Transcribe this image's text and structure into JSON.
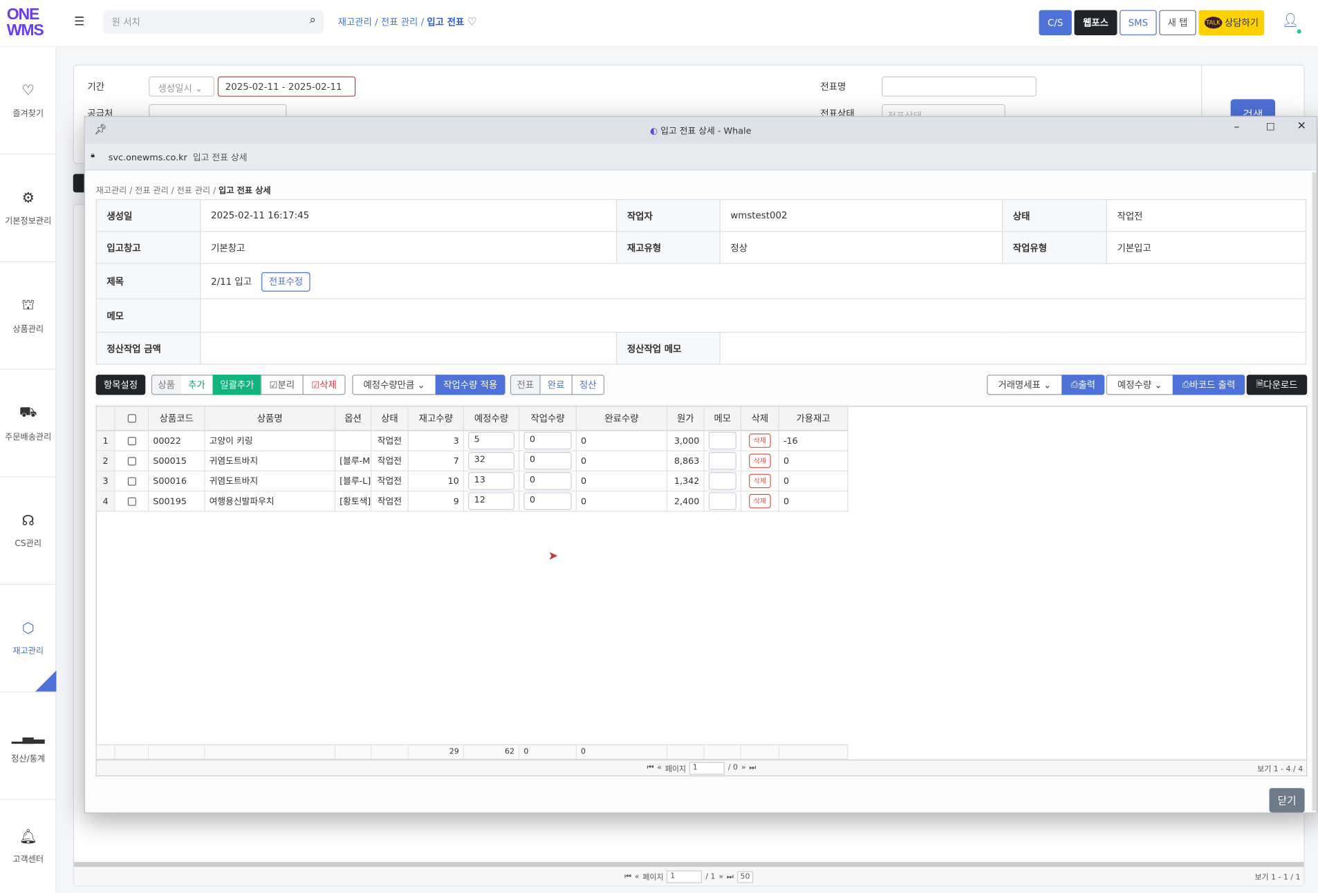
{
  "app": {
    "logo": "ONE WMS",
    "search_placeholder": "원 서치",
    "breadcrumb": [
      "재고관리",
      "전표 관리",
      "입고 전표"
    ],
    "buttons": {
      "cs": "C/S",
      "webpos": "웹포스",
      "sms": "SMS",
      "newtab": "새 탭",
      "talk": "상담하기"
    },
    "colors": {
      "accent": "#4f72d9",
      "dark": "#212529",
      "talk": "#fdd000",
      "brand": "#6a3df0"
    }
  },
  "sidebar": [
    {
      "label": "즐겨찾기",
      "icon": "heart"
    },
    {
      "label": "기본정보관리",
      "icon": "gear"
    },
    {
      "label": "상품관리",
      "icon": "lock-bag"
    },
    {
      "label": "주문배송관리",
      "icon": "truck"
    },
    {
      "label": "CS관리",
      "icon": "headset"
    },
    {
      "label": "재고관리",
      "icon": "cube",
      "active": true
    },
    {
      "label": "정산/통계",
      "icon": "bar-chart"
    },
    {
      "label": "고객센터",
      "icon": "bell"
    }
  ],
  "search_panel": {
    "period_label": "기간",
    "period_type": "생성일시",
    "period_value": "2025-02-11 - 2025-02-11",
    "supplier_label": "공급처",
    "slip_name_label": "전표명",
    "slip_status_label": "전표상태",
    "slip_status_placeholder": "전표상태",
    "search_button": "검색"
  },
  "bg_pager": {
    "page_label": "페이지",
    "page": "1",
    "total": "/ 1",
    "page_size": "50",
    "view": "보기 1 - 1 / 1"
  },
  "modal": {
    "title": "입고 전표 상세 - Whale",
    "url_host": "svc.onewms.co.kr",
    "url_title": "입고 전표 상세",
    "breadcrumb": [
      "재고관리",
      "전표 관리",
      "전표 관리",
      "입고 전표 상세"
    ],
    "info": {
      "created_label": "생성일",
      "created": "2025-02-11 16:17:45",
      "worker_label": "작업자",
      "worker": "wmstest002",
      "status_label": "상태",
      "status": "작업전",
      "warehouse_label": "입고창고",
      "warehouse": "기본창고",
      "stock_type_label": "재고유형",
      "stock_type": "정상",
      "work_type_label": "작업유형",
      "work_type": "기본입고",
      "title_label": "제목",
      "title": "2/11 입고",
      "edit_button": "전표수정",
      "memo_label": "메모",
      "settle_amount_label": "정산작업 금액",
      "settle_memo_label": "정산작업 메모"
    },
    "toolbar": {
      "settings": "항목설정",
      "product": "상품",
      "add": "추가",
      "bulk_add": "일괄추가",
      "split": "분리",
      "delete": "삭제",
      "qty_select": "예정수량만큼",
      "apply_qty": "작업수량 적용",
      "slip": "전표",
      "done": "완료",
      "settle": "정산",
      "statement_select": "거래명세표",
      "print": "출력",
      "barcode_select": "예정수량",
      "barcode_print": "바코드 출력",
      "download": "다운로드"
    },
    "columns": [
      "",
      "",
      "상품코드",
      "상품명",
      "옵션",
      "상태",
      "재고수량",
      "예정수량",
      "작업수량",
      "완료수량",
      "원가",
      "메모",
      "삭제",
      "가용재고"
    ],
    "rows": [
      {
        "no": "1",
        "code": "00022",
        "name": "고양이 키링",
        "option": "",
        "status": "작업전",
        "stock": "3",
        "planned": "5",
        "work": "0",
        "done": "0",
        "cost": "3,000",
        "avail": "-16"
      },
      {
        "no": "2",
        "code": "S00015",
        "name": "귀염도트바지",
        "option": "[블루-M]",
        "status": "작업전",
        "stock": "7",
        "planned": "32",
        "work": "0",
        "done": "0",
        "cost": "8,863",
        "avail": "0"
      },
      {
        "no": "3",
        "code": "S00016",
        "name": "귀염도트바지",
        "option": "[블루-L]",
        "status": "작업전",
        "stock": "10",
        "planned": "13",
        "work": "0",
        "done": "0",
        "cost": "1,342",
        "avail": "0"
      },
      {
        "no": "4",
        "code": "S00195",
        "name": "여행용신발파우치",
        "option": "[황토색]",
        "status": "작업전",
        "stock": "9",
        "planned": "12",
        "work": "0",
        "done": "0",
        "cost": "2,400",
        "avail": "0"
      }
    ],
    "row_delete": "삭제",
    "totals": {
      "stock": "29",
      "planned": "62",
      "work": "0",
      "done": "0"
    },
    "pager": {
      "page_label": "페이지",
      "page": "1",
      "total": "/ 0",
      "view": "보기 1 - 4 / 4"
    },
    "close": "닫기"
  }
}
